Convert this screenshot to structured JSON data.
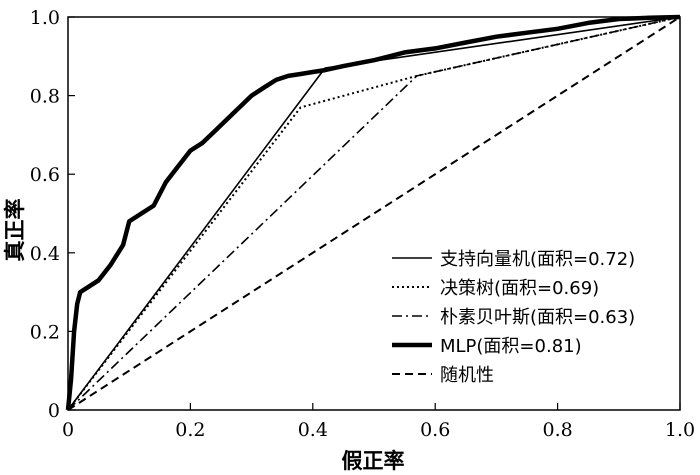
{
  "chart_data": {
    "type": "line",
    "title": "",
    "xlabel": "假正率",
    "ylabel": "真正率",
    "xlim": [
      0,
      1
    ],
    "ylim": [
      0,
      1
    ],
    "xticks": [
      "0",
      "0.2",
      "0.4",
      "0.6",
      "0.8",
      "1.0"
    ],
    "yticks": [
      "0",
      "0.2",
      "0.4",
      "0.6",
      "0.8",
      "1.0"
    ],
    "grid": false,
    "legend_position": "bottom-right",
    "series": [
      {
        "name": "支持向量机(面积=0.72)",
        "style": "solid-thin",
        "x": [
          0,
          0.42,
          1.0
        ],
        "y": [
          0,
          0.87,
          1.0
        ]
      },
      {
        "name": "决策树(面积=0.69)",
        "style": "dotted",
        "x": [
          0,
          0.38,
          0.57,
          1.0
        ],
        "y": [
          0,
          0.77,
          0.85,
          1.0
        ]
      },
      {
        "name": "朴素贝叶斯(面积=0.63)",
        "style": "dash-dot",
        "x": [
          0,
          0.57,
          1.0
        ],
        "y": [
          0,
          0.85,
          1.0
        ]
      },
      {
        "name": "MLP(面积=0.81)",
        "style": "solid-thick",
        "x": [
          0,
          0.005,
          0.01,
          0.015,
          0.02,
          0.03,
          0.05,
          0.07,
          0.09,
          0.1,
          0.12,
          0.14,
          0.16,
          0.18,
          0.2,
          0.22,
          0.24,
          0.26,
          0.28,
          0.3,
          0.32,
          0.34,
          0.36,
          0.38,
          0.4,
          0.42,
          0.45,
          0.5,
          0.55,
          0.6,
          0.65,
          0.7,
          0.75,
          0.8,
          0.85,
          0.9,
          0.95,
          1.0
        ],
        "y": [
          0,
          0.08,
          0.2,
          0.27,
          0.3,
          0.31,
          0.33,
          0.37,
          0.42,
          0.48,
          0.5,
          0.52,
          0.58,
          0.62,
          0.66,
          0.68,
          0.71,
          0.74,
          0.77,
          0.8,
          0.82,
          0.84,
          0.85,
          0.855,
          0.86,
          0.865,
          0.875,
          0.89,
          0.91,
          0.92,
          0.935,
          0.95,
          0.96,
          0.97,
          0.985,
          0.995,
          0.998,
          1.0
        ]
      },
      {
        "name": "随机性",
        "style": "dashed",
        "x": [
          0,
          1.0
        ],
        "y": [
          0,
          1.0
        ]
      }
    ]
  }
}
